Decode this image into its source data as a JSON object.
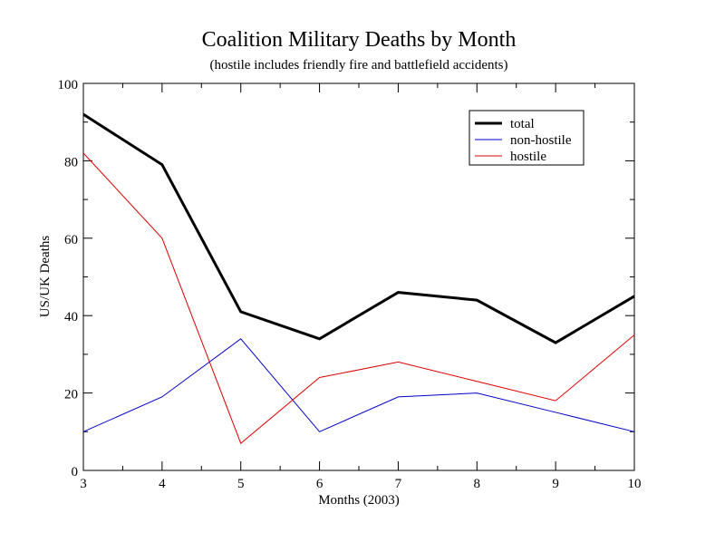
{
  "chart_data": {
    "type": "line",
    "title": "Coalition Military Deaths by Month",
    "subtitle": "(hostile includes friendly fire and battlefield accidents)",
    "xlabel": "Months (2003)",
    "ylabel": "US/UK Deaths",
    "x": [
      3,
      4,
      5,
      6,
      7,
      8,
      9,
      10
    ],
    "xlim": [
      3,
      10
    ],
    "ylim": [
      0,
      100
    ],
    "xticks": [
      3,
      4,
      5,
      6,
      7,
      8,
      9,
      10
    ],
    "yticks": [
      0,
      20,
      40,
      60,
      80,
      100
    ],
    "grid": false,
    "legend_position": "top-right",
    "series": [
      {
        "name": "total",
        "color": "#000000",
        "values": [
          92,
          79,
          41,
          34,
          46,
          44,
          33,
          45
        ]
      },
      {
        "name": "non-hostile",
        "color": "#0000cc",
        "values": [
          10,
          19,
          34,
          10,
          19,
          20,
          15,
          10
        ]
      },
      {
        "name": "hostile",
        "color": "#dd0000",
        "values": [
          82,
          60,
          7,
          24,
          28,
          23,
          18,
          35
        ]
      }
    ]
  }
}
